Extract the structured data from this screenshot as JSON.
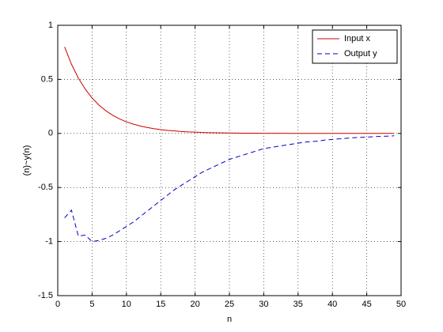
{
  "chart_data": {
    "type": "line",
    "xlabel": "n",
    "ylabel": "(n)~y(n)",
    "x": [
      1,
      2,
      3,
      4,
      5,
      6,
      7,
      8,
      9,
      10,
      11,
      12,
      13,
      14,
      15,
      16,
      17,
      18,
      19,
      20,
      21,
      22,
      23,
      24,
      25,
      26,
      27,
      28,
      29,
      30,
      31,
      32,
      33,
      34,
      35,
      36,
      37,
      38,
      39,
      40,
      41,
      42,
      43,
      44,
      45,
      46,
      47,
      48,
      49
    ],
    "series": [
      {
        "name": "Input x",
        "color": "#cc0000",
        "dash": "solid",
        "values": [
          0.8,
          0.64,
          0.512,
          0.41,
          0.328,
          0.262,
          0.21,
          0.168,
          0.134,
          0.107,
          0.086,
          0.069,
          0.055,
          0.044,
          0.035,
          0.028,
          0.023,
          0.018,
          0.014,
          0.012,
          0.009,
          0.007,
          0.006,
          0.005,
          0.004,
          0.003,
          0.002,
          0.002,
          0.002,
          0.001,
          0.001,
          0.001,
          0.001,
          0,
          0,
          0,
          0,
          0,
          0,
          0,
          0,
          0,
          0,
          0,
          0,
          0,
          0,
          0,
          0
        ]
      },
      {
        "name": "Output y",
        "color": "#0000cc",
        "dash": "dashed",
        "values": [
          -0.78,
          -0.71,
          -0.95,
          -0.94,
          -1.0,
          -0.99,
          -0.97,
          -0.94,
          -0.9,
          -0.86,
          -0.82,
          -0.77,
          -0.72,
          -0.67,
          -0.62,
          -0.57,
          -0.52,
          -0.48,
          -0.44,
          -0.4,
          -0.36,
          -0.33,
          -0.3,
          -0.27,
          -0.24,
          -0.22,
          -0.2,
          -0.18,
          -0.16,
          -0.14,
          -0.13,
          -0.12,
          -0.11,
          -0.1,
          -0.09,
          -0.08,
          -0.075,
          -0.07,
          -0.06,
          -0.055,
          -0.05,
          -0.045,
          -0.04,
          -0.037,
          -0.034,
          -0.03,
          -0.027,
          -0.025,
          -0.022
        ]
      }
    ],
    "xlim": [
      0,
      50
    ],
    "xticks": [
      0,
      5,
      10,
      15,
      20,
      25,
      30,
      35,
      40,
      45,
      50
    ],
    "ylim": [
      -1.5,
      1
    ],
    "yticks": [
      -1.5,
      -1,
      -0.5,
      0,
      0.5,
      1
    ],
    "grid": true,
    "legend": "top-right"
  }
}
